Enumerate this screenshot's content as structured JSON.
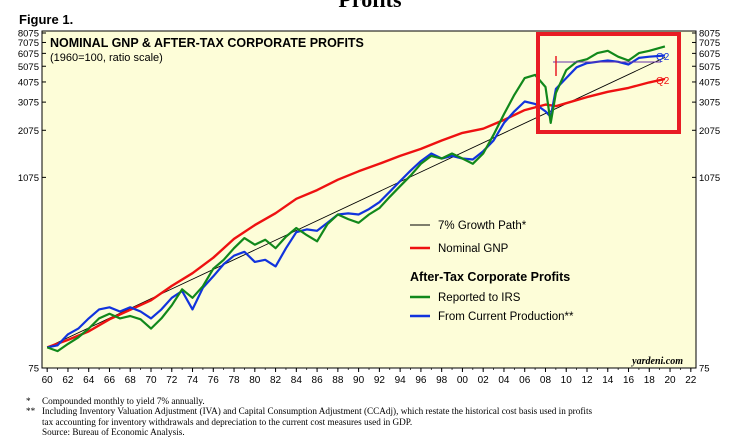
{
  "page": {
    "cropped_title": "Profits",
    "figure_label": "Figure 1."
  },
  "chart_data": {
    "type": "line",
    "title": "NOMINAL GNP & AFTER-TAX CORPORATE PROFITS",
    "subtitle": "(1960=100, ratio scale)",
    "y_scale": "log",
    "ylim": [
      75,
      8075
    ],
    "xlim": [
      1959.5,
      2022.5
    ],
    "y_ticks": [
      75,
      1075,
      2075,
      3075,
      4075,
      5075,
      6075,
      7075,
      8075
    ],
    "x_tick_labels": [
      "60",
      "62",
      "64",
      "66",
      "68",
      "70",
      "72",
      "74",
      "76",
      "78",
      "80",
      "82",
      "84",
      "86",
      "88",
      "90",
      "92",
      "94",
      "96",
      "98",
      "00",
      "02",
      "04",
      "06",
      "08",
      "10",
      "12",
      "14",
      "16",
      "18",
      "20",
      "22"
    ],
    "background": "#fdfdd8",
    "grid": false,
    "legend_placement": "center-right",
    "legend": {
      "growth_path": "7% Growth Path*",
      "gnp": "Nominal GNP",
      "profits_header": "After-Tax Corporate Profits",
      "irs": "Reported to IRS",
      "current": "From Current Production**"
    },
    "colors": {
      "growth_path": "#000000",
      "gnp": "#ee1111",
      "irs": "#11881b",
      "current": "#1133dd",
      "highlight_box": "#e81c24"
    },
    "series": [
      {
        "name": "7% Growth Path*",
        "x": [
          1960,
          2019.5
        ],
        "y": [
          100,
          5740
        ]
      },
      {
        "name": "Nominal GNP",
        "x": [
          1960,
          1962,
          1964,
          1966,
          1968,
          1970,
          1972,
          1974,
          1976,
          1978,
          1980,
          1982,
          1984,
          1986,
          1988,
          1990,
          1992,
          1994,
          1996,
          1998,
          2000,
          2002,
          2004,
          2006,
          2008,
          2009,
          2010,
          2012,
          2014,
          2016,
          2018,
          2019.5
        ],
        "y": [
          100,
          111,
          125,
          148,
          169,
          193,
          236,
          282,
          350,
          455,
          552,
          652,
          797,
          900,
          1040,
          1170,
          1300,
          1450,
          1600,
          1800,
          2000,
          2120,
          2400,
          2750,
          2970,
          2910,
          3030,
          3300,
          3550,
          3750,
          4050,
          4250
        ]
      },
      {
        "name": "Reported to IRS",
        "x": [
          1960,
          1961,
          1962,
          1963,
          1964,
          1965,
          1966,
          1967,
          1968,
          1969,
          1970,
          1971,
          1972,
          1973,
          1974,
          1975,
          1976,
          1977,
          1978,
          1979,
          1980,
          1981,
          1982,
          1983,
          1984,
          1985,
          1986,
          1987,
          1988,
          1989,
          1990,
          1991,
          1992,
          1993,
          1994,
          1995,
          1996,
          1997,
          1998,
          1999,
          2000,
          2001,
          2002,
          2003,
          2004,
          2005,
          2006,
          2007,
          2008,
          2008.5,
          2009,
          2010,
          2011,
          2012,
          2013,
          2014,
          2015,
          2016,
          2017,
          2018,
          2019.5
        ],
        "y": [
          100,
          95,
          105,
          115,
          130,
          150,
          160,
          150,
          155,
          148,
          130,
          150,
          180,
          225,
          200,
          235,
          300,
          340,
          400,
          460,
          420,
          450,
          400,
          470,
          530,
          480,
          440,
          560,
          640,
          600,
          570,
          640,
          700,
          820,
          950,
          1100,
          1300,
          1450,
          1400,
          1500,
          1400,
          1300,
          1500,
          1950,
          2600,
          3400,
          4300,
          4500,
          3800,
          2300,
          3500,
          4800,
          5400,
          5600,
          6100,
          6300,
          5800,
          5500,
          6100,
          6300,
          6700
        ]
      },
      {
        "name": "From Current Production**",
        "x": [
          1960,
          1961,
          1962,
          1963,
          1964,
          1965,
          1966,
          1967,
          1968,
          1969,
          1970,
          1971,
          1972,
          1973,
          1974,
          1975,
          1976,
          1977,
          1978,
          1979,
          1980,
          1981,
          1982,
          1983,
          1984,
          1985,
          1986,
          1987,
          1988,
          1989,
          1990,
          1991,
          1992,
          1993,
          1994,
          1995,
          1996,
          1997,
          1998,
          1999,
          2000,
          2001,
          2002,
          2003,
          2004,
          2005,
          2006,
          2007,
          2008,
          2008.5,
          2009,
          2010,
          2011,
          2012,
          2013,
          2014,
          2015,
          2016,
          2017,
          2018,
          2019.5
        ],
        "y": [
          100,
          103,
          120,
          130,
          150,
          170,
          175,
          165,
          175,
          165,
          150,
          170,
          200,
          220,
          170,
          230,
          270,
          320,
          360,
          380,
          330,
          340,
          310,
          400,
          500,
          520,
          510,
          570,
          640,
          650,
          640,
          690,
          760,
          880,
          1020,
          1180,
          1350,
          1500,
          1400,
          1450,
          1400,
          1380,
          1550,
          1800,
          2300,
          2700,
          3100,
          3000,
          2700,
          2500,
          3700,
          4300,
          5000,
          5300,
          5400,
          5500,
          5400,
          5200,
          5700,
          5800,
          5900
        ]
      }
    ],
    "annotations": {
      "q2_upper": "Q2",
      "q2_lower": "Q2",
      "watermark": "yardeni.com"
    }
  },
  "footnotes": [
    {
      "mark": "*",
      "text": "Compounded monthly to yield 7% annually."
    },
    {
      "mark": "**",
      "text": "Including Inventory Valuation Adjustment (IVA) and Capital Consumption Adjustment (CCAdj), which restate the historical cost basis used in profits"
    },
    {
      "mark": "",
      "text": "tax accounting for inventory withdrawals and depreciation to the current cost measures used in GDP."
    },
    {
      "mark": "",
      "text": "Source: Bureau of Economic Analysis."
    }
  ]
}
